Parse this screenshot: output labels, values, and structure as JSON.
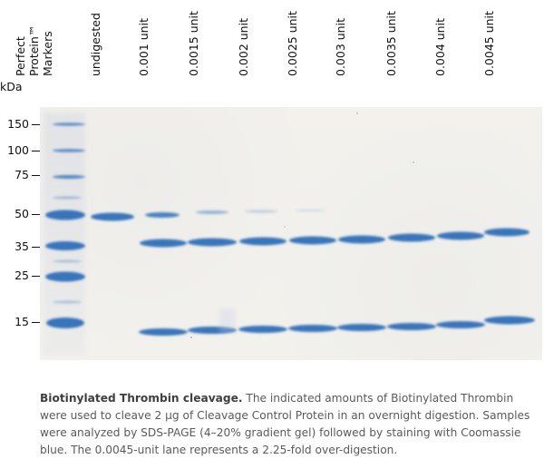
{
  "figure": {
    "unit_label": "kDa",
    "marker_label": "Perfect Protein™ Markers",
    "lanes": [
      "undigested",
      "0.001 unit",
      "0.0015 unit",
      "0.002 unit",
      "0.0025 unit",
      "0.003 unit",
      "0.0035 unit",
      "0.004 unit",
      "0.0045 unit"
    ],
    "size_ticks": [
      "150",
      "100",
      "75",
      "50",
      "35",
      "25",
      "15"
    ],
    "colors": {
      "band": "#2f6fb8",
      "gel_background": "#f2f1ec"
    }
  },
  "caption": {
    "title": "Biotinylated Thrombin cleavage.",
    "body": "The indicated amounts of Biotinylated Thrombin were used to cleave 2 μg of Cleavage Control Protein in an overnight digestion. Samples were analyzed by SDS-PAGE (4–20% gradient gel) followed by staining with Coomassie blue. The 0.0045-unit lane represents a 2.25-fold over-digestion."
  }
}
